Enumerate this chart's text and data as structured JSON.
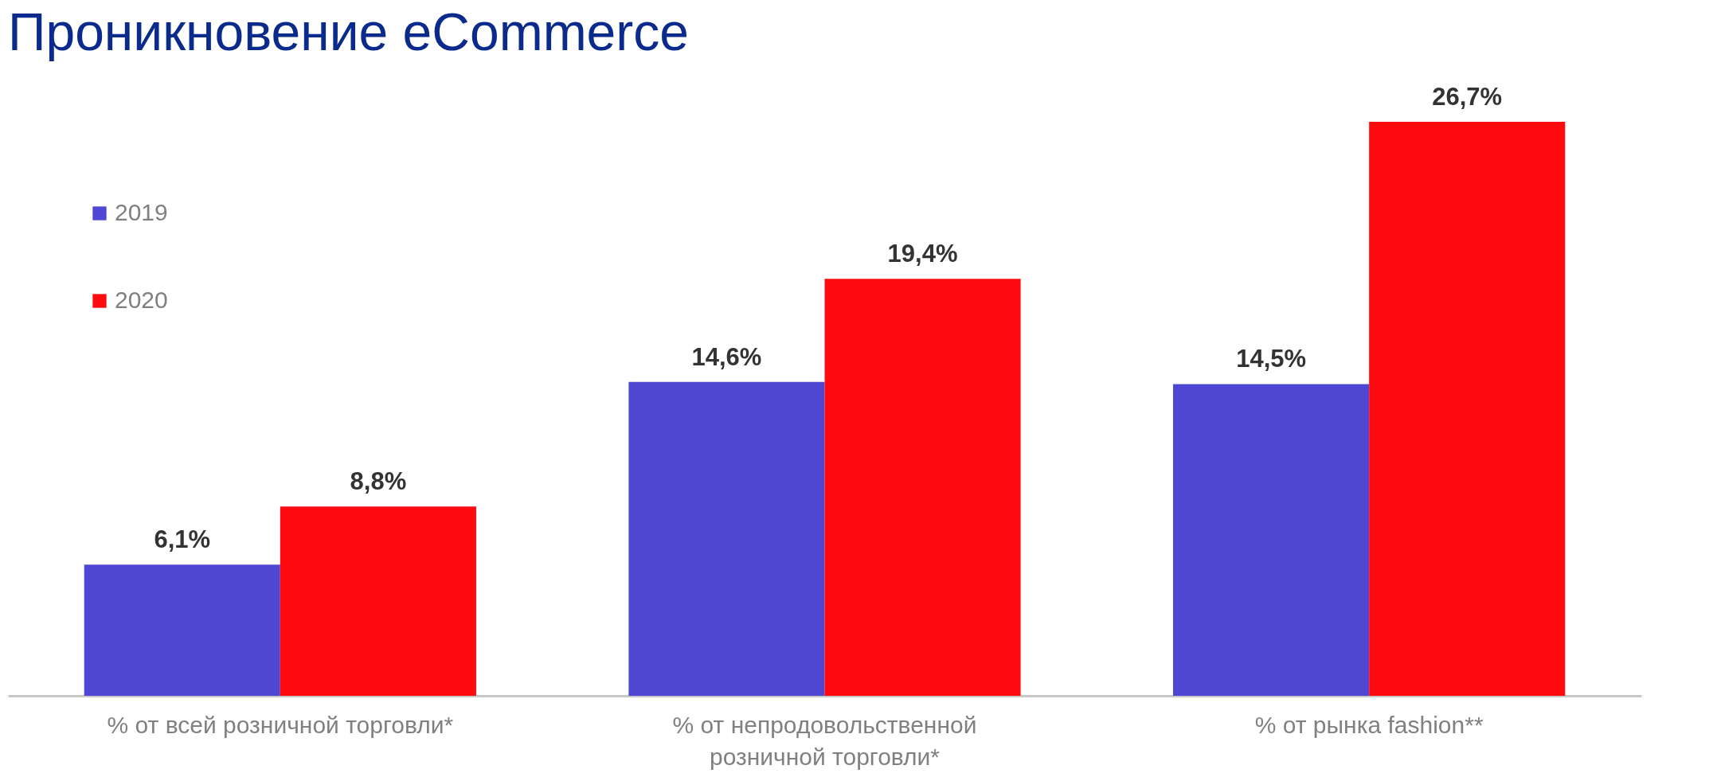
{
  "chart_data": {
    "type": "bar",
    "title": "Проникновение eCommerce",
    "categories": [
      "% от всей розничной торговли*",
      "% от непродовольственной розничной торговли*",
      "% от рынка fashion**"
    ],
    "series": [
      {
        "name": "2019",
        "color": "#5046d4",
        "values": [
          6.1,
          14.6,
          14.5
        ],
        "value_labels": [
          "6,1%",
          "14,6%",
          "14,5%"
        ]
      },
      {
        "name": "2020",
        "color": "#ff0a0f",
        "values": [
          8.8,
          19.4,
          26.7
        ],
        "value_labels": [
          "8,8%",
          "19,4%",
          "26,7%"
        ]
      }
    ],
    "legend": "top left",
    "grid": false
  }
}
